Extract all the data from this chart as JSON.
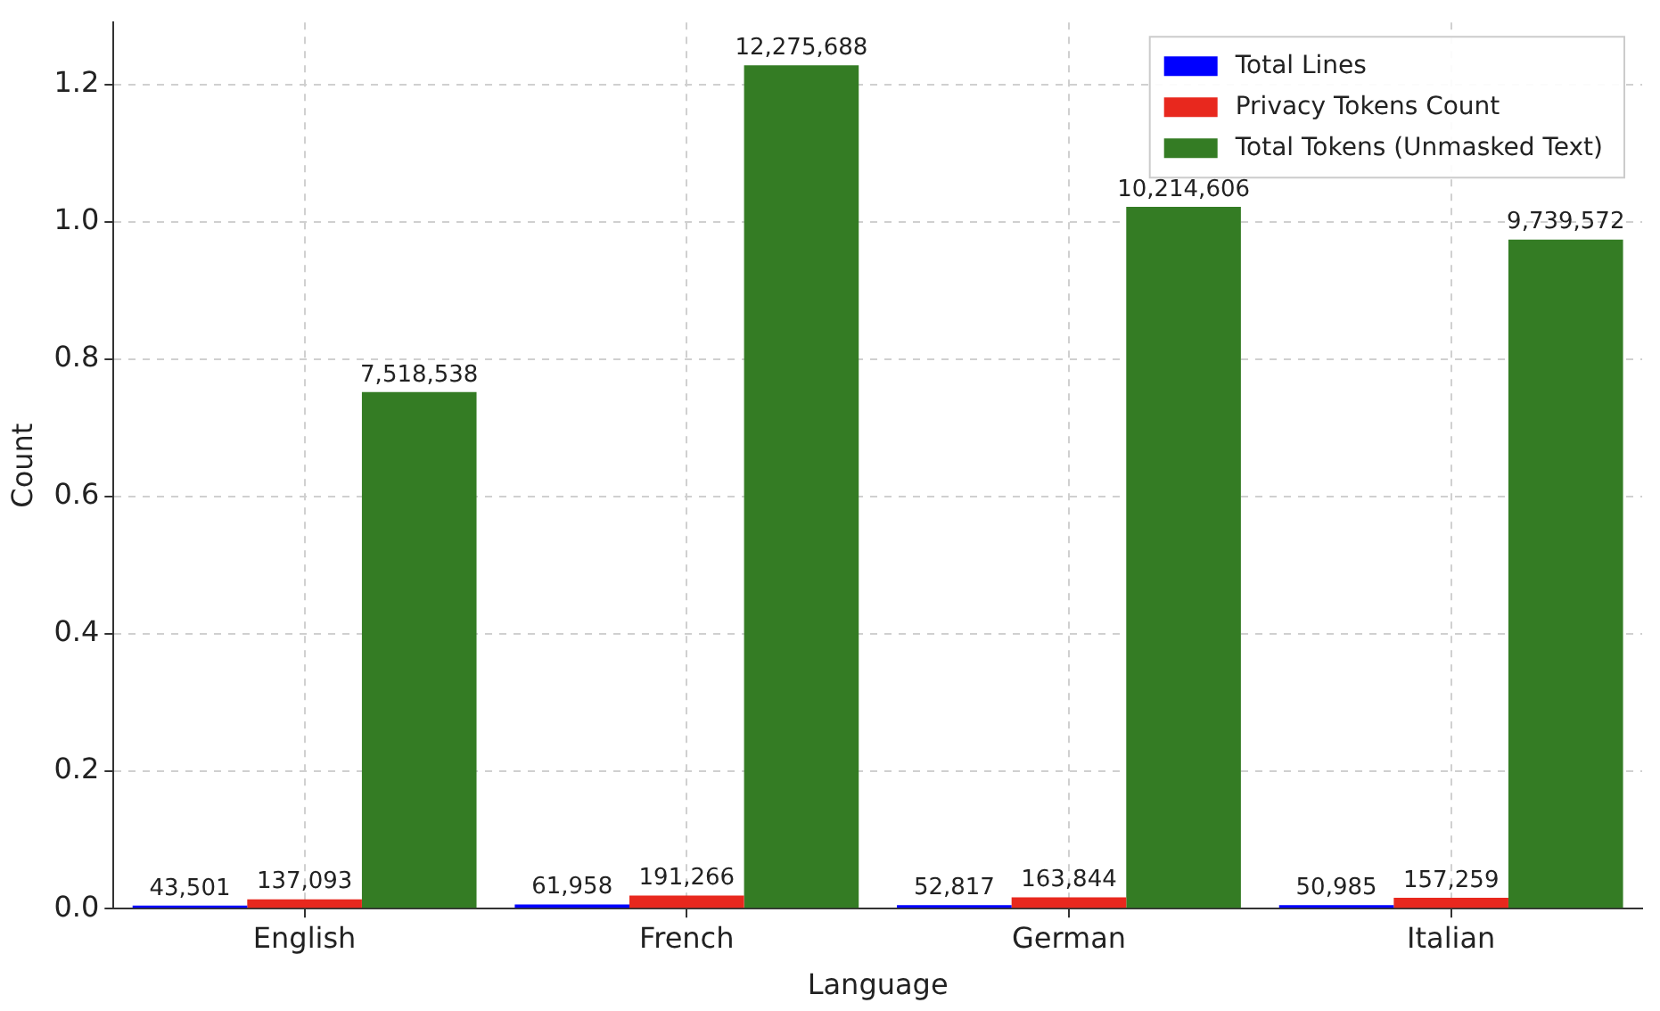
{
  "chart_data": {
    "type": "bar",
    "xlabel": "Language",
    "ylabel": "Count",
    "categories": [
      "English",
      "French",
      "German",
      "Italian"
    ],
    "series": [
      {
        "name": "Total Lines",
        "color": "#0000ff",
        "values": [
          0.0043501,
          0.0061958,
          0.0052817,
          0.0050985
        ]
      },
      {
        "name": "Privacy Tokens Count",
        "color": "#e8281e",
        "values": [
          0.0137093,
          0.0191266,
          0.0163844,
          0.0157259
        ]
      },
      {
        "name": "Total Tokens (Unmasked Text)",
        "color": "#347c24",
        "values": [
          0.7518538,
          1.2275688,
          1.0214606,
          0.9739572
        ]
      }
    ],
    "annotations": [
      "43,501",
      "61,958",
      "52,817",
      "50,985",
      "137,093",
      "191,266",
      "163,844",
      "157,259",
      "7,518,538",
      "12,275,688",
      "10,214,606",
      "9,739,572"
    ],
    "ylim": [
      0,
      1.29
    ],
    "yticks": [
      {
        "value": 0,
        "label": "0.0"
      },
      0.2,
      0.4,
      0.6,
      0.8,
      {
        "value": 1,
        "label": "1.0"
      },
      1.2
    ],
    "grid": true,
    "legend": "top right"
  }
}
